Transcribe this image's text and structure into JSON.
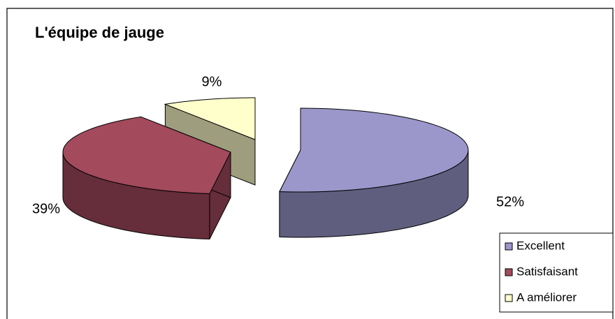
{
  "chart_data": {
    "type": "pie",
    "title": "L'équipe de jauge",
    "categories": [
      "Excellent",
      "Satisfaisant",
      "A améliorer"
    ],
    "values": [
      52,
      39,
      9
    ],
    "value_labels": [
      "52%",
      "39%",
      "9%"
    ],
    "colors": [
      "#9b97cb",
      "#a34a5d",
      "#ffffcc"
    ]
  }
}
